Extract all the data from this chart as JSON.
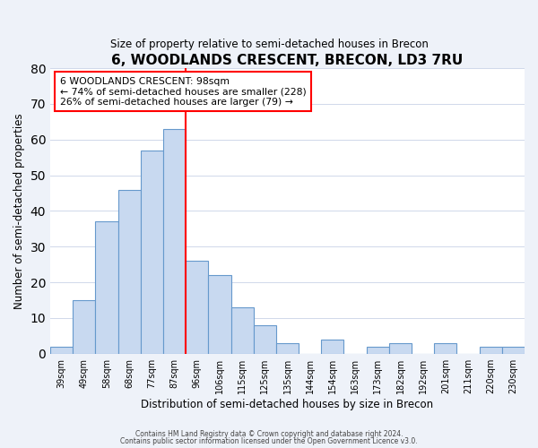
{
  "title": "6, WOODLANDS CRESCENT, BRECON, LD3 7RU",
  "subtitle": "Size of property relative to semi-detached houses in Brecon",
  "xlabel": "Distribution of semi-detached houses by size in Brecon",
  "ylabel": "Number of semi-detached properties",
  "bar_labels": [
    "39sqm",
    "49sqm",
    "58sqm",
    "68sqm",
    "77sqm",
    "87sqm",
    "96sqm",
    "106sqm",
    "115sqm",
    "125sqm",
    "135sqm",
    "144sqm",
    "154sqm",
    "163sqm",
    "173sqm",
    "182sqm",
    "192sqm",
    "201sqm",
    "211sqm",
    "220sqm",
    "230sqm"
  ],
  "bar_values": [
    2,
    15,
    37,
    46,
    57,
    63,
    26,
    22,
    13,
    8,
    3,
    0,
    4,
    0,
    2,
    3,
    0,
    3,
    0,
    2,
    2
  ],
  "bar_color": "#c8d9f0",
  "bar_edge_color": "#6699cc",
  "property_line_x": 6,
  "property_line_color": "red",
  "ylim": [
    0,
    80
  ],
  "annotation_title": "6 WOODLANDS CRESCENT: 98sqm",
  "annotation_line1": "← 74% of semi-detached houses are smaller (228)",
  "annotation_line2": "26% of semi-detached houses are larger (79) →",
  "annotation_box_color": "white",
  "annotation_box_edge": "red",
  "footer_line1": "Contains HM Land Registry data © Crown copyright and database right 2024.",
  "footer_line2": "Contains public sector information licensed under the Open Government Licence v3.0.",
  "background_color": "#eef2f9",
  "plot_background_color": "white"
}
